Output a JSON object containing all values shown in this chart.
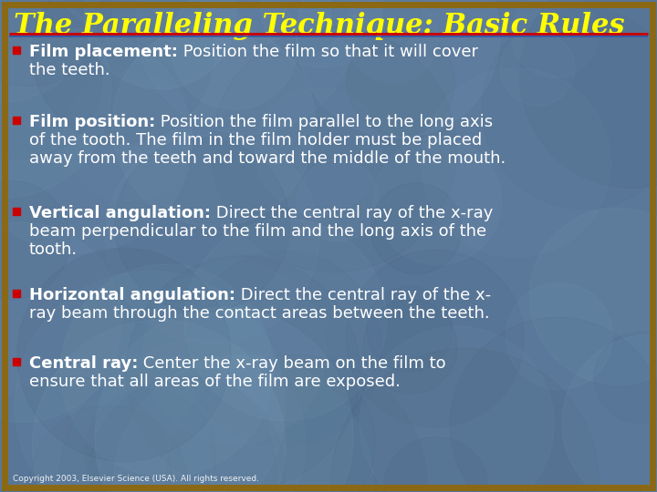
{
  "title": "The Paralleling Technique: Basic Rules",
  "title_color": "#FFFF00",
  "title_fontsize": 22,
  "background_color": "#5a7899",
  "border_color": "#8B6914",
  "border_width": 5,
  "separator_color_top": "#cc0000",
  "separator_color_bottom": "#3355aa",
  "bullet_color": "#cc0000",
  "text_color": "#ffffff",
  "copyright": "Copyright 2003, Elsevier Science (USA). All rights reserved.",
  "bullet_font_size": 13,
  "bullets": [
    {
      "bold": "Film placement:",
      "normal": " Position the film so that it will cover\nthe teeth."
    },
    {
      "bold": "Film position:",
      "normal": " Position the film parallel to the long axis\nof the tooth. The film in the film holder must be placed\naway from the teeth and toward the middle of the mouth."
    },
    {
      "bold": "Vertical angulation:",
      "normal": " Direct the central ray of the x-ray\nbeam perpendicular to the film and the long axis of the\ntooth."
    },
    {
      "bold": "Horizontal angulation:",
      "normal": " Direct the central ray of the x-\nray beam through the contact areas between the teeth."
    },
    {
      "bold": "Central ray:",
      "normal": " Center the x-ray beam on the film to\nensure that all areas of the film are exposed."
    }
  ]
}
